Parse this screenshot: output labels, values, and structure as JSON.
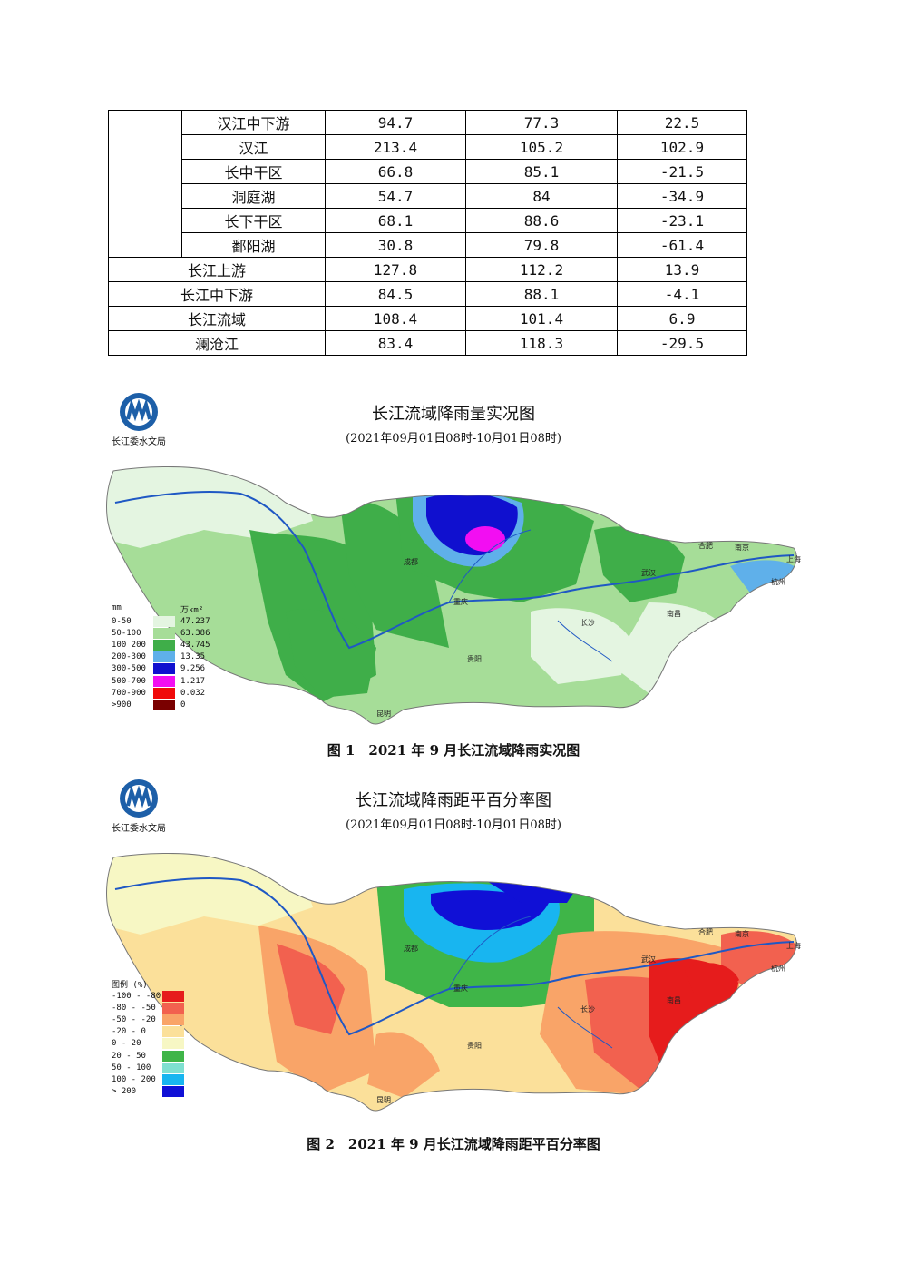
{
  "table": {
    "rows": [
      {
        "name": "汉江中下游",
        "v1": "94.7",
        "v2": "77.3",
        "v3": "22.5"
      },
      {
        "name": "汉江",
        "v1": "213.4",
        "v2": "105.2",
        "v3": "102.9"
      },
      {
        "name": "长中干区",
        "v1": "66.8",
        "v2": "85.1",
        "v3": "-21.5"
      },
      {
        "name": "洞庭湖",
        "v1": "54.7",
        "v2": "84",
        "v3": "-34.9"
      },
      {
        "name": "长下干区",
        "v1": "68.1",
        "v2": "88.6",
        "v3": "-23.1"
      },
      {
        "name": "鄱阳湖",
        "v1": "30.8",
        "v2": "79.8",
        "v3": "-61.4"
      },
      {
        "name": "长江上游",
        "v1": "127.8",
        "v2": "112.2",
        "v3": "13.9"
      },
      {
        "name": "长江中下游",
        "v1": "84.5",
        "v2": "88.1",
        "v3": "-4.1"
      },
      {
        "name": "长江流域",
        "v1": "108.4",
        "v2": "101.4",
        "v3": "6.9"
      },
      {
        "name": "澜沧江",
        "v1": "83.4",
        "v2": "118.3",
        "v3": "-29.5"
      }
    ]
  },
  "map1": {
    "logo_text": "长江委水文局",
    "title": "长江流域降雨量实况图",
    "subtitle": "(2021年09月01日08时-10月01日08时)",
    "legend_unit": "mm",
    "legend_area_unit": "万km²",
    "legend": [
      {
        "range": "0-50",
        "area": "47.237",
        "color": "#e4f5e1"
      },
      {
        "range": "50-100",
        "area": "63.386",
        "color": "#a6dd98"
      },
      {
        "range": "100 200",
        "area": "43.745",
        "color": "#3fae49"
      },
      {
        "range": "200-300",
        "area": "13.35",
        "color": "#5fb0ea"
      },
      {
        "range": "300-500",
        "area": "9.256",
        "color": "#1010cf"
      },
      {
        "range": "500-700",
        "area": "1.217",
        "color": "#f20ef2"
      },
      {
        "range": "700-900",
        "area": "0.032",
        "color": "#f00a0a"
      },
      {
        "range": ">900",
        "area": "0",
        "color": "#7a0000"
      }
    ],
    "caption": "图 1　2021 年 9 月长江流域降雨实况图"
  },
  "map2": {
    "logo_text": "长江委水文局",
    "title": "长江流域降雨距平百分率图",
    "subtitle": "(2021年09月01日08时-10月01日08时)",
    "legend_title": "图例 (%)",
    "legend": [
      {
        "range": "-100 - -80",
        "color": "#e61c1c"
      },
      {
        "range": "-80 - -50",
        "color": "#f2614f"
      },
      {
        "range": "-50 - -20",
        "color": "#f9a468"
      },
      {
        "range": "-20 - 0",
        "color": "#fbe09a"
      },
      {
        "range": "0 - 20",
        "color": "#f7f7c4"
      },
      {
        "range": "20 - 50",
        "color": "#3fb548"
      },
      {
        "range": "50 - 100",
        "color": "#7fe0d0"
      },
      {
        "range": "100 - 200",
        "color": "#18b5f0"
      },
      {
        "range": "> 200",
        "color": "#1010d6"
      }
    ],
    "caption": "图 2　2021 年 9 月长江流域降雨距平百分率图"
  },
  "cities": {
    "chengdu": "成都",
    "chongqing": "重庆",
    "wuhan": "武汉",
    "changsha": "长沙",
    "nanchang": "南昌",
    "hefei": "合肥",
    "nanjing": "南京",
    "shanghai": "上海",
    "hangzhou": "杭州",
    "guiyang": "贵阳",
    "kunming": "昆明"
  }
}
